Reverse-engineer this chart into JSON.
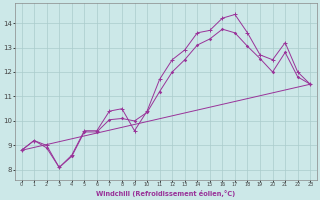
{
  "xlabel": "Windchill (Refroidissement éolien,°C)",
  "background_color": "#cce8e8",
  "grid_color": "#aacccc",
  "line_color": "#993399",
  "xlim": [
    -0.5,
    23.5
  ],
  "ylim": [
    7.6,
    14.8
  ],
  "xticks": [
    0,
    1,
    2,
    3,
    4,
    5,
    6,
    7,
    8,
    9,
    10,
    11,
    12,
    13,
    14,
    15,
    16,
    17,
    18,
    19,
    20,
    21,
    22,
    23
  ],
  "yticks": [
    8,
    9,
    10,
    11,
    12,
    13,
    14
  ],
  "line1_x": [
    0,
    1,
    2,
    3,
    4,
    5,
    6,
    7,
    8,
    9,
    10,
    11,
    12,
    13,
    14,
    15,
    16,
    17,
    18,
    19,
    20,
    21,
    22,
    23
  ],
  "line1_y": [
    8.8,
    9.2,
    9.0,
    8.1,
    8.6,
    9.6,
    9.6,
    10.4,
    10.5,
    9.6,
    10.4,
    11.7,
    12.5,
    12.9,
    13.6,
    13.7,
    14.2,
    14.35,
    13.6,
    12.7,
    12.5,
    13.2,
    12.0,
    11.5
  ],
  "line2_x": [
    0,
    1,
    2,
    3,
    4,
    5,
    6,
    7,
    8,
    9,
    10,
    11,
    12,
    13,
    14,
    15,
    16,
    17,
    18,
    19,
    20,
    21,
    22,
    23
  ],
  "line2_y": [
    8.8,
    9.2,
    8.9,
    8.1,
    8.55,
    9.55,
    9.55,
    10.05,
    10.1,
    10.0,
    10.35,
    11.2,
    12.0,
    12.5,
    13.1,
    13.35,
    13.75,
    13.6,
    13.05,
    12.55,
    12.0,
    12.8,
    11.8,
    11.5
  ],
  "line3_x": [
    0,
    23
  ],
  "line3_y": [
    8.8,
    11.5
  ]
}
